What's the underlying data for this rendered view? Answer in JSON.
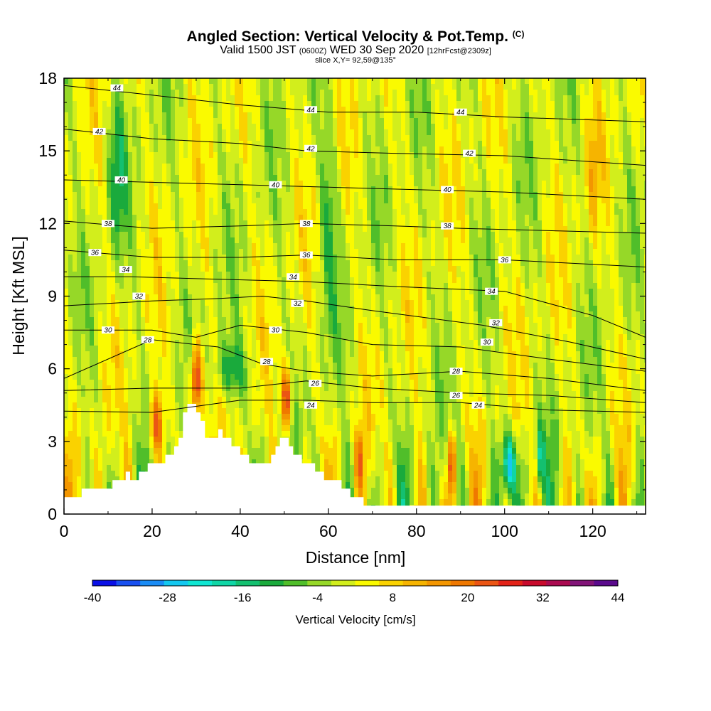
{
  "title": {
    "main": "Angled Section: Vertical Velocity & Pot.Temp.",
    "main_tag": "(C)",
    "valid_prefix": "Valid 1500 JST",
    "valid_zulu": "(0600Z)",
    "valid_date": "WED 30 Sep 2020",
    "valid_fcst": "[12hrFcst@2309z]",
    "slice": "slice X,Y= 92,59@135°"
  },
  "chart_data": {
    "type": "heatmap",
    "xlabel": "Distance [nm]",
    "ylabel": "Height [Kft MSL]",
    "xlim": [
      0,
      132
    ],
    "ylim": [
      0,
      18
    ],
    "x_ticks": [
      0,
      20,
      40,
      60,
      80,
      100,
      120
    ],
    "y_ticks": [
      0,
      3,
      6,
      9,
      12,
      15,
      18
    ],
    "colorbar": {
      "label": "Vertical Velocity [cm/s]",
      "tick_labels": [
        -40,
        -28,
        -16,
        -4,
        8,
        20,
        32,
        44
      ],
      "levels": [
        -40,
        -36,
        -32,
        -28,
        -24,
        -20,
        -16,
        -12,
        -8,
        -4,
        0,
        4,
        8,
        12,
        16,
        20,
        24,
        28,
        32,
        36,
        40,
        44
      ],
      "colors": [
        "#0a10e6",
        "#1850f0",
        "#1a8cf5",
        "#14c8f0",
        "#10e6d2",
        "#10d6a6",
        "#14c070",
        "#1aaa3c",
        "#50be2a",
        "#96d828",
        "#d2ee1c",
        "#fafa00",
        "#fad200",
        "#f6b400",
        "#f39600",
        "#ef7800",
        "#eb5514",
        "#e32318",
        "#c80a2c",
        "#aa0a50",
        "#821478",
        "#5a0a8c"
      ]
    },
    "terrain_profile": [
      [
        0,
        0.5
      ],
      [
        2,
        0.6
      ],
      [
        4,
        0.9
      ],
      [
        8,
        1.0
      ],
      [
        12,
        1.3
      ],
      [
        14,
        1.6
      ],
      [
        17,
        1.5
      ],
      [
        19,
        1.9
      ],
      [
        22,
        2.2
      ],
      [
        24,
        2.4
      ],
      [
        26,
        2.9
      ],
      [
        28,
        4.4
      ],
      [
        29,
        4.6
      ],
      [
        30,
        4.3
      ],
      [
        31,
        3.9
      ],
      [
        32,
        3.5
      ],
      [
        33,
        3.0
      ],
      [
        34,
        3.1
      ],
      [
        35,
        3.5
      ],
      [
        37,
        3.1
      ],
      [
        39,
        2.7
      ],
      [
        41,
        2.4
      ],
      [
        43,
        2.2
      ],
      [
        45,
        2.0
      ],
      [
        46,
        1.9
      ],
      [
        47,
        2.3
      ],
      [
        48,
        2.8
      ],
      [
        49,
        3.1
      ],
      [
        50,
        3.4
      ],
      [
        51,
        3.1
      ],
      [
        52,
        2.7
      ],
      [
        54,
        2.3
      ],
      [
        56,
        2.0
      ],
      [
        58,
        1.7
      ],
      [
        60,
        1.5
      ],
      [
        62,
        1.3
      ],
      [
        64,
        1.0
      ],
      [
        66,
        0.8
      ],
      [
        68,
        0.5
      ],
      [
        70,
        0.3
      ],
      [
        72,
        0.25
      ],
      [
        132,
        0.25
      ]
    ],
    "theta_contours": [
      {
        "label": "24",
        "points": [
          [
            0,
            4.25
          ],
          [
            20,
            4.2
          ],
          [
            40,
            4.7
          ],
          [
            55,
            4.7
          ],
          [
            70,
            4.6
          ],
          [
            90,
            4.6
          ],
          [
            110,
            4.3
          ],
          [
            132,
            4.2
          ]
        ]
      },
      {
        "label": "26",
        "points": [
          [
            0,
            5.1
          ],
          [
            20,
            5.2
          ],
          [
            40,
            5.2
          ],
          [
            55,
            5.5
          ],
          [
            70,
            5.2
          ],
          [
            90,
            5.0
          ],
          [
            110,
            4.9
          ],
          [
            132,
            4.6
          ]
        ]
      },
      {
        "label": "28",
        "points": [
          [
            0,
            5.6
          ],
          [
            20,
            7.2
          ],
          [
            35,
            6.9
          ],
          [
            45,
            6.2
          ],
          [
            55,
            5.9
          ],
          [
            70,
            5.7
          ],
          [
            90,
            5.9
          ],
          [
            110,
            5.6
          ],
          [
            132,
            5.1
          ]
        ]
      },
      {
        "label": "30",
        "points": [
          [
            0,
            7.6
          ],
          [
            10,
            7.6
          ],
          [
            20,
            7.6
          ],
          [
            30,
            7.3
          ],
          [
            40,
            7.8
          ],
          [
            55,
            7.5
          ],
          [
            70,
            7.0
          ],
          [
            90,
            6.9
          ],
          [
            110,
            6.4
          ],
          [
            132,
            5.9
          ]
        ]
      },
      {
        "label": "32",
        "points": [
          [
            0,
            8.6
          ],
          [
            10,
            8.7
          ],
          [
            20,
            8.8
          ],
          [
            35,
            8.9
          ],
          [
            45,
            9.0
          ],
          [
            55,
            8.8
          ],
          [
            70,
            8.4
          ],
          [
            95,
            7.8
          ],
          [
            115,
            7.1
          ],
          [
            132,
            6.4
          ]
        ]
      },
      {
        "label": "34",
        "points": [
          [
            0,
            9.8
          ],
          [
            15,
            9.8
          ],
          [
            35,
            9.7
          ],
          [
            55,
            9.6
          ],
          [
            75,
            9.4
          ],
          [
            100,
            9.2
          ],
          [
            120,
            8.2
          ],
          [
            132,
            7.3
          ]
        ]
      },
      {
        "label": "36",
        "points": [
          [
            0,
            10.9
          ],
          [
            20,
            10.6
          ],
          [
            40,
            10.6
          ],
          [
            55,
            10.7
          ],
          [
            75,
            10.5
          ],
          [
            100,
            10.5
          ],
          [
            132,
            10.2
          ]
        ]
      },
      {
        "label": "38",
        "points": [
          [
            0,
            12.1
          ],
          [
            20,
            11.8
          ],
          [
            40,
            11.9
          ],
          [
            55,
            12.0
          ],
          [
            75,
            11.9
          ],
          [
            90,
            11.8
          ],
          [
            132,
            11.6
          ]
        ]
      },
      {
        "label": "40",
        "points": [
          [
            0,
            13.8
          ],
          [
            20,
            13.7
          ],
          [
            40,
            13.6
          ],
          [
            60,
            13.5
          ],
          [
            80,
            13.4
          ],
          [
            100,
            13.3
          ],
          [
            132,
            13.0
          ]
        ]
      },
      {
        "label": "42",
        "points": [
          [
            0,
            15.9
          ],
          [
            20,
            15.5
          ],
          [
            40,
            15.3
          ],
          [
            55,
            15.0
          ],
          [
            75,
            14.9
          ],
          [
            100,
            14.8
          ],
          [
            132,
            14.4
          ]
        ]
      },
      {
        "label": "44",
        "points": [
          [
            0,
            17.7
          ],
          [
            20,
            17.3
          ],
          [
            40,
            16.9
          ],
          [
            60,
            16.6
          ],
          [
            80,
            16.6
          ],
          [
            100,
            16.4
          ],
          [
            132,
            16.2
          ]
        ]
      }
    ],
    "theta_labels": [
      {
        "text": "44",
        "x": 12,
        "y": 17.6
      },
      {
        "text": "44",
        "x": 56,
        "y": 16.7
      },
      {
        "text": "44",
        "x": 90,
        "y": 16.6
      },
      {
        "text": "42",
        "x": 8,
        "y": 15.8
      },
      {
        "text": "42",
        "x": 56,
        "y": 15.1
      },
      {
        "text": "42",
        "x": 92,
        "y": 14.9
      },
      {
        "text": "40",
        "x": 13,
        "y": 13.8
      },
      {
        "text": "40",
        "x": 48,
        "y": 13.6
      },
      {
        "text": "40",
        "x": 87,
        "y": 13.4
      },
      {
        "text": "38",
        "x": 10,
        "y": 12.0
      },
      {
        "text": "38",
        "x": 55,
        "y": 12.0
      },
      {
        "text": "38",
        "x": 87,
        "y": 11.9
      },
      {
        "text": "36",
        "x": 7,
        "y": 10.8
      },
      {
        "text": "36",
        "x": 55,
        "y": 10.7
      },
      {
        "text": "36",
        "x": 100,
        "y": 10.5
      },
      {
        "text": "34",
        "x": 14,
        "y": 10.1
      },
      {
        "text": "34",
        "x": 52,
        "y": 9.8
      },
      {
        "text": "34",
        "x": 97,
        "y": 9.2
      },
      {
        "text": "32",
        "x": 17,
        "y": 9.0
      },
      {
        "text": "32",
        "x": 53,
        "y": 8.7
      },
      {
        "text": "32",
        "x": 98,
        "y": 7.9
      },
      {
        "text": "30",
        "x": 10,
        "y": 7.6
      },
      {
        "text": "30",
        "x": 48,
        "y": 7.6
      },
      {
        "text": "30",
        "x": 96,
        "y": 7.1
      },
      {
        "text": "28",
        "x": 19,
        "y": 7.2
      },
      {
        "text": "28",
        "x": 46,
        "y": 6.3
      },
      {
        "text": "28",
        "x": 89,
        "y": 5.9
      },
      {
        "text": "26",
        "x": 57,
        "y": 5.4
      },
      {
        "text": "26",
        "x": 89,
        "y": 4.9
      },
      {
        "text": "24",
        "x": 56,
        "y": 4.5
      },
      {
        "text": "24",
        "x": 94,
        "y": 4.5
      }
    ]
  }
}
